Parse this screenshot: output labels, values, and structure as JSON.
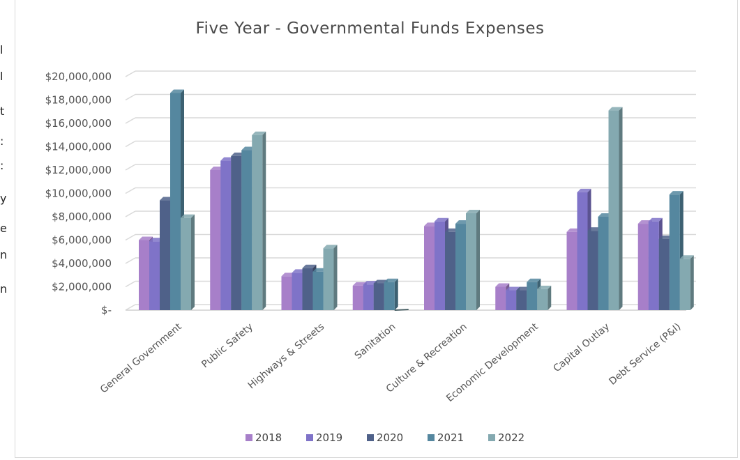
{
  "left_edge_text": [
    "l",
    "l",
    "t",
    ":",
    ":",
    "y",
    "e",
    "n",
    "n"
  ],
  "chart_data": {
    "type": "bar",
    "title": "Five Year - Governmental Funds Expenses",
    "xlabel": "",
    "ylabel": "",
    "ylim": [
      0,
      20000000
    ],
    "yticks": [
      0,
      2000000,
      4000000,
      6000000,
      8000000,
      10000000,
      12000000,
      14000000,
      16000000,
      18000000,
      20000000
    ],
    "ytick_labels": [
      "$-",
      "$2,000,000",
      "$4,000,000",
      "$6,000,000",
      "$8,000,000",
      "$10,000,000",
      "$12,000,000",
      "$14,000,000",
      "$16,000,000",
      "$18,000,000",
      "$20,000,000"
    ],
    "categories": [
      "General Government",
      "Public Safety",
      "Highways & Streets",
      "Sanitation",
      "Culture & Recreation",
      "Economic Development",
      "Capital Outlay",
      "Debt Service (P&I)"
    ],
    "series": [
      {
        "name": "2018",
        "color": "#a77fc9",
        "values": [
          6000000,
          12000000,
          2900000,
          2100000,
          7200000,
          2000000,
          6700000,
          7400000
        ]
      },
      {
        "name": "2019",
        "color": "#7f73c8",
        "values": [
          5900000,
          12800000,
          3200000,
          2200000,
          7600000,
          1700000,
          10100000,
          7600000
        ]
      },
      {
        "name": "2020",
        "color": "#4f6189",
        "values": [
          9400000,
          13200000,
          3600000,
          2300000,
          6700000,
          1700000,
          6800000,
          6100000
        ]
      },
      {
        "name": "2021",
        "color": "#55879f",
        "values": [
          18600000,
          13700000,
          3300000,
          2400000,
          7400000,
          2400000,
          8000000,
          9900000
        ]
      },
      {
        "name": "2022",
        "color": "#84a9b0",
        "values": [
          7900000,
          15000000,
          5300000,
          0,
          8300000,
          1800000,
          17100000,
          4400000
        ]
      }
    ],
    "grid": true,
    "legend_position": "bottom"
  }
}
